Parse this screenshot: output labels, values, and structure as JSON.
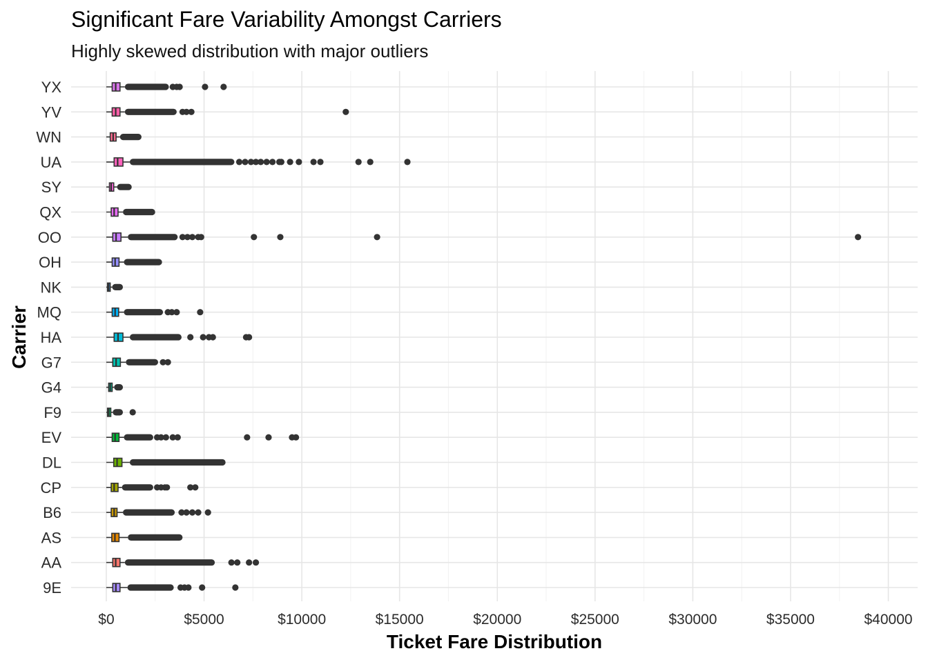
{
  "chart_data": {
    "type": "boxplot",
    "title": "Significant Fare Variability Amongst Carriers",
    "subtitle": "Highly skewed distribution with major outliers",
    "xlabel": "Ticket Fare Distribution",
    "ylabel": "Carrier",
    "xlim": [
      -1800,
      41500
    ],
    "x_ticks": [
      0,
      5000,
      10000,
      15000,
      20000,
      25000,
      30000,
      35000,
      40000
    ],
    "x_tick_labels": [
      "$0",
      "$5000",
      "$10000",
      "$15000",
      "$20000",
      "$25000",
      "$30000",
      "$35000",
      "$40000"
    ],
    "grid": true,
    "legend": "none",
    "series": [
      {
        "carrier": "9E",
        "whisker_low": 0,
        "q1": 330,
        "median": 490,
        "q3": 700,
        "whisker_high": 1080,
        "outlier_band": [
          1080,
          3450
        ],
        "outliers": [
          3800,
          4000,
          4200,
          4900,
          6600
        ],
        "color": "#a58afa"
      },
      {
        "carrier": "AA",
        "whisker_low": 0,
        "q1": 330,
        "median": 480,
        "q3": 700,
        "whisker_high": 950,
        "outlier_band": [
          950,
          5550
        ],
        "outliers": [
          6400,
          6700,
          7300,
          7650
        ],
        "color": "#f8766d"
      },
      {
        "carrier": "AS",
        "whisker_low": 0,
        "q1": 280,
        "median": 440,
        "q3": 650,
        "whisker_high": 1100,
        "outlier_band": [
          1100,
          3900
        ],
        "outliers": [],
        "color": "#e58700"
      },
      {
        "carrier": "B6",
        "whisker_low": 0,
        "q1": 250,
        "median": 400,
        "q3": 550,
        "whisker_high": 850,
        "outlier_band": [
          850,
          3500
        ],
        "outliers": [
          3850,
          4100,
          4400,
          4700,
          5200
        ],
        "color": "#c99800"
      },
      {
        "carrier": "CP",
        "whisker_low": 0,
        "q1": 250,
        "median": 400,
        "q3": 600,
        "whisker_high": 800,
        "outlier_band": [
          800,
          2400
        ],
        "outliers": [
          2600,
          2800,
          3000,
          3100,
          4300,
          4550
        ],
        "color": "#a3a500"
      },
      {
        "carrier": "DL",
        "whisker_low": 0,
        "q1": 380,
        "median": 550,
        "q3": 800,
        "whisker_high": 1200,
        "outlier_band": [
          1200,
          6100
        ],
        "outliers": [],
        "color": "#6bb100"
      },
      {
        "carrier": "EV",
        "whisker_low": 0,
        "q1": 300,
        "median": 450,
        "q3": 650,
        "whisker_high": 900,
        "outlier_band": [
          900,
          2400
        ],
        "outliers": [
          2600,
          2800,
          3050,
          3400,
          3650,
          7200,
          8300,
          9500,
          9700
        ],
        "color": "#00ba38"
      },
      {
        "carrier": "F9",
        "whisker_low": 0,
        "q1": 60,
        "median": 130,
        "q3": 230,
        "whisker_high": 330,
        "outlier_band": [
          330,
          850
        ],
        "outliers": [
          1350
        ],
        "color": "#00be67"
      },
      {
        "carrier": "G4",
        "whisker_low": 0,
        "q1": 120,
        "median": 200,
        "q3": 300,
        "whisker_high": 400,
        "outlier_band": [
          400,
          850
        ],
        "outliers": [],
        "color": "#00bf96"
      },
      {
        "carrier": "G7",
        "whisker_low": 0,
        "q1": 330,
        "median": 500,
        "q3": 720,
        "whisker_high": 1000,
        "outlier_band": [
          1000,
          2650
        ],
        "outliers": [
          2900,
          3150
        ],
        "color": "#00c0af"
      },
      {
        "carrier": "HA",
        "whisker_low": 0,
        "q1": 400,
        "median": 600,
        "q3": 850,
        "whisker_high": 1200,
        "outlier_band": [
          1200,
          3850
        ],
        "outliers": [
          4300,
          4950,
          5250,
          5450,
          7150,
          7300
        ],
        "color": "#00bcd8"
      },
      {
        "carrier": "MQ",
        "whisker_low": 0,
        "q1": 300,
        "median": 450,
        "q3": 630,
        "whisker_high": 900,
        "outlier_band": [
          900,
          2900
        ],
        "outliers": [
          3150,
          3350,
          3600,
          4800
        ],
        "color": "#00b0f6"
      },
      {
        "carrier": "NK",
        "whisker_low": 0,
        "q1": 60,
        "median": 120,
        "q3": 200,
        "whisker_high": 300,
        "outlier_band": [
          300,
          850
        ],
        "outliers": [],
        "color": "#35a2ff"
      },
      {
        "carrier": "OH",
        "whisker_low": 0,
        "q1": 300,
        "median": 450,
        "q3": 650,
        "whisker_high": 900,
        "outlier_band": [
          900,
          2850
        ],
        "outliers": [],
        "color": "#9590ff"
      },
      {
        "carrier": "OO",
        "whisker_low": 0,
        "q1": 330,
        "median": 500,
        "q3": 750,
        "whisker_high": 1100,
        "outlier_band": [
          1100,
          3650
        ],
        "outliers": [
          3900,
          4150,
          4400,
          4700,
          4850,
          7550,
          8900,
          13850,
          38450
        ],
        "color": "#c77cff"
      },
      {
        "carrier": "QX",
        "whisker_low": 0,
        "q1": 250,
        "median": 400,
        "q3": 600,
        "whisker_high": 850,
        "outlier_band": [
          850,
          2500
        ],
        "outliers": [],
        "color": "#e76bf3"
      },
      {
        "carrier": "SY",
        "whisker_low": 0,
        "q1": 160,
        "median": 250,
        "q3": 380,
        "whisker_high": 550,
        "outlier_band": [
          550,
          1300
        ],
        "outliers": [],
        "color": "#fa62db"
      },
      {
        "carrier": "UA",
        "whisker_low": 0,
        "q1": 400,
        "median": 580,
        "q3": 850,
        "whisker_high": 1200,
        "outlier_band": [
          1200,
          6550
        ],
        "outliers": [
          6800,
          7100,
          7400,
          7650,
          7900,
          8200,
          8500,
          8850,
          8950,
          9400,
          9850,
          10600,
          10950,
          12900,
          13500,
          15400
        ],
        "color": "#ff62bc"
      },
      {
        "carrier": "WN",
        "whisker_low": 0,
        "q1": 200,
        "median": 350,
        "q3": 500,
        "whisker_high": 700,
        "outlier_band": [
          700,
          1800
        ],
        "outliers": [],
        "color": "#ff6c91"
      },
      {
        "carrier": "YV",
        "whisker_low": 0,
        "q1": 300,
        "median": 480,
        "q3": 700,
        "whisker_high": 950,
        "outlier_band": [
          950,
          3600
        ],
        "outliers": [
          3900,
          4100,
          4350,
          12250
        ],
        "color": "#ff5fa8"
      },
      {
        "carrier": "YX",
        "whisker_low": 0,
        "q1": 300,
        "median": 480,
        "q3": 700,
        "whisker_high": 950,
        "outlier_band": [
          950,
          3200
        ],
        "outliers": [
          3400,
          3600,
          3750,
          5050,
          6000
        ],
        "color": "#d774e8"
      }
    ]
  }
}
